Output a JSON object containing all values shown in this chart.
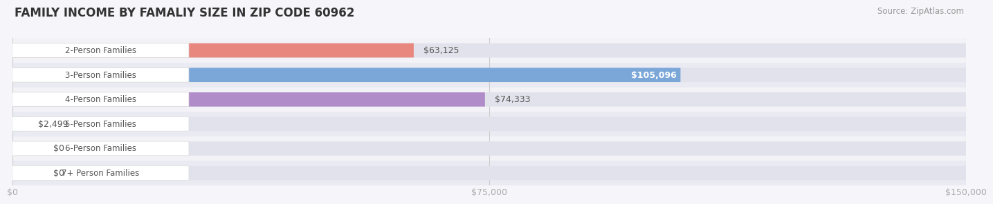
{
  "title": "FAMILY INCOME BY FAMALIY SIZE IN ZIP CODE 60962",
  "source": "Source: ZipAtlas.com",
  "categories": [
    "2-Person Families",
    "3-Person Families",
    "4-Person Families",
    "5-Person Families",
    "6-Person Families",
    "7+ Person Families"
  ],
  "values": [
    63125,
    105096,
    74333,
    2499,
    0,
    0
  ],
  "labels": [
    "$63,125",
    "$105,096",
    "$74,333",
    "$2,499",
    "$0",
    "$0"
  ],
  "bar_colors": [
    "#E8877E",
    "#7BA7D8",
    "#B08CC8",
    "#5DCEC0",
    "#AAAAD8",
    "#F4A8BF"
  ],
  "row_colors": [
    "#F2F2F7",
    "#EAEAF2"
  ],
  "bar_bg_color": "#E2E2EC",
  "xlim_max": 150000,
  "xticks": [
    0,
    75000,
    150000
  ],
  "xticklabels": [
    "$0",
    "$75,000",
    "$150,000"
  ],
  "title_fontsize": 12,
  "source_fontsize": 8.5,
  "tick_fontsize": 9,
  "bar_label_fontsize": 9,
  "category_fontsize": 8.5,
  "label_inside_threshold": 0.55,
  "label_color_dark": "#555555",
  "label_color_white": "#FFFFFF",
  "tick_color": "#AAAAAA",
  "title_color": "#333333",
  "source_color": "#999999"
}
